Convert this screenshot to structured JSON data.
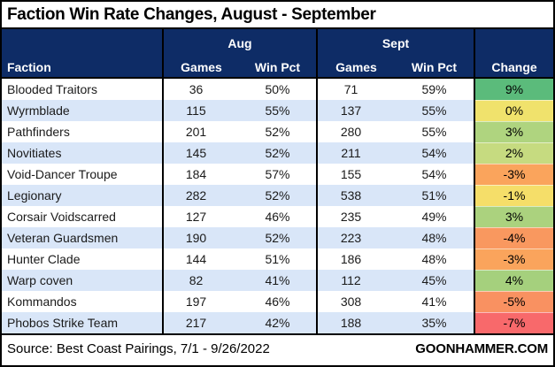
{
  "title": "Faction Win Rate Changes, August - September",
  "header": {
    "faction_label": "Faction",
    "aug_group_label": "Aug",
    "sept_group_label": "Sept",
    "aug_games_label": "Games",
    "aug_win_pct_label": "Win Pct",
    "sept_games_label": "Games",
    "sept_win_pct_label": "Win Pct",
    "change_label": "Change"
  },
  "chart_data": {
    "type": "table",
    "title": "Faction Win Rate Changes, August - September",
    "column_groups": [
      "",
      "Aug",
      "Aug",
      "Sept",
      "Sept",
      ""
    ],
    "columns": [
      "Faction",
      "Games",
      "Win Pct",
      "Games",
      "Win Pct",
      "Change"
    ],
    "rows": [
      {
        "faction": "Blooded Traitors",
        "aug_games": "36",
        "aug_win_pct": "50%",
        "sept_games": "71",
        "sept_win_pct": "59%",
        "change": "9%",
        "change_color": "#5BBB7B"
      },
      {
        "faction": "Wyrmblade",
        "aug_games": "115",
        "aug_win_pct": "55%",
        "sept_games": "137",
        "sept_win_pct": "55%",
        "change": "0%",
        "change_color": "#F0E26C"
      },
      {
        "faction": "Pathfinders",
        "aug_games": "201",
        "aug_win_pct": "52%",
        "sept_games": "280",
        "sept_win_pct": "55%",
        "change": "3%",
        "change_color": "#AFD47F"
      },
      {
        "faction": "Novitiates",
        "aug_games": "145",
        "aug_win_pct": "52%",
        "sept_games": "211",
        "sept_win_pct": "54%",
        "change": "2%",
        "change_color": "#C6DB80"
      },
      {
        "faction": "Void-Dancer Troupe",
        "aug_games": "184",
        "aug_win_pct": "57%",
        "sept_games": "155",
        "sept_win_pct": "54%",
        "change": "-3%",
        "change_color": "#FAA45C"
      },
      {
        "faction": "Legionary",
        "aug_games": "282",
        "aug_win_pct": "52%",
        "sept_games": "538",
        "sept_win_pct": "51%",
        "change": "-1%",
        "change_color": "#F5DE69"
      },
      {
        "faction": "Corsair Voidscarred",
        "aug_games": "127",
        "aug_win_pct": "46%",
        "sept_games": "235",
        "sept_win_pct": "49%",
        "change": "3%",
        "change_color": "#ABD27E"
      },
      {
        "faction": "Veteran Guardsmen",
        "aug_games": "190",
        "aug_win_pct": "52%",
        "sept_games": "223",
        "sept_win_pct": "48%",
        "change": "-4%",
        "change_color": "#F9985F"
      },
      {
        "faction": "Hunter Clade",
        "aug_games": "144",
        "aug_win_pct": "51%",
        "sept_games": "186",
        "sept_win_pct": "48%",
        "change": "-3%",
        "change_color": "#FAA45C"
      },
      {
        "faction": "Warp coven",
        "aug_games": "82",
        "aug_win_pct": "41%",
        "sept_games": "112",
        "sept_win_pct": "45%",
        "change": "4%",
        "change_color": "#A5D07D"
      },
      {
        "faction": "Kommandos",
        "aug_games": "197",
        "aug_win_pct": "46%",
        "sept_games": "308",
        "sept_win_pct": "41%",
        "change": "-5%",
        "change_color": "#F99161"
      },
      {
        "faction": "Phobos Strike Team",
        "aug_games": "217",
        "aug_win_pct": "42%",
        "sept_games": "188",
        "sept_win_pct": "35%",
        "change": "-7%",
        "change_color": "#F8696B"
      }
    ],
    "legend_note": "Change column heat-mapped red (negative) to green (positive)"
  },
  "footer": {
    "source": "Source: Best Coast Pairings, 7/1 - 9/26/2022",
    "brand": "GOONHAMMER.COM"
  },
  "colors": {
    "header_bg": "#0E2C66",
    "header_text": "#FFFFFF",
    "band_row_bg": "#D9E6F8",
    "border": "#000000",
    "body_text": "#1A1A1A"
  }
}
